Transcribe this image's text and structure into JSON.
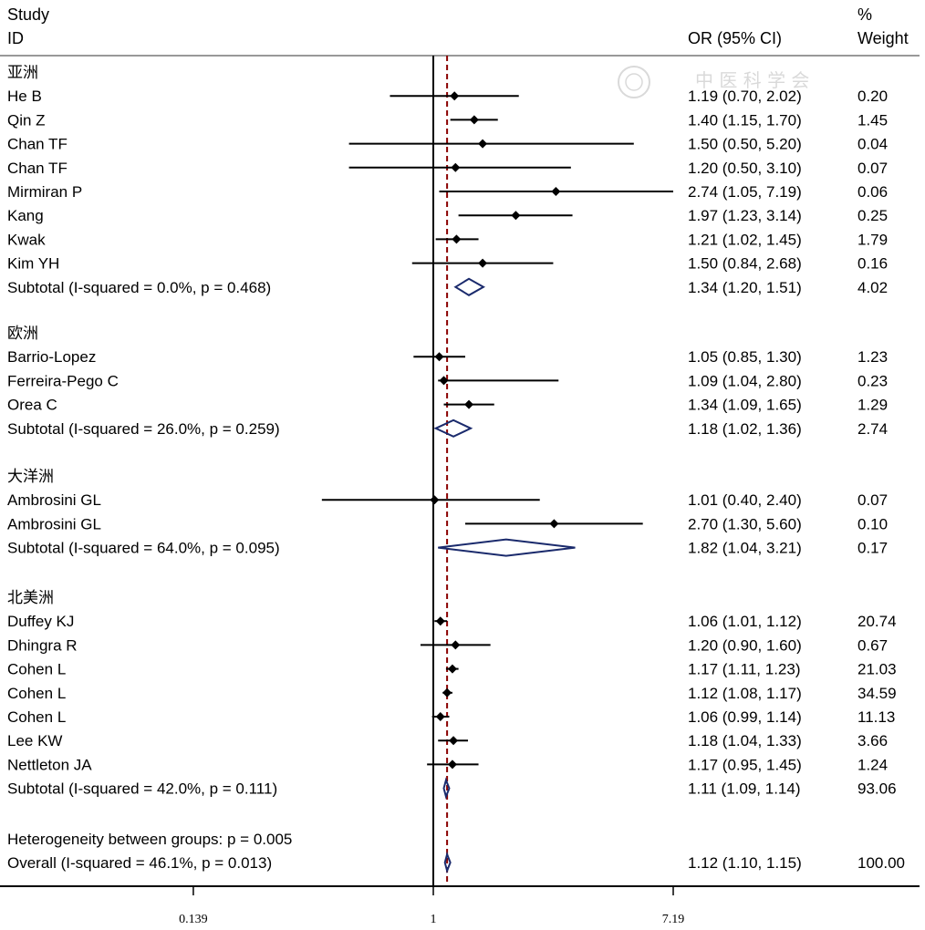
{
  "headers": {
    "study_line1": "Study",
    "study_line2": "ID",
    "or": "OR (95% CI)",
    "weight_line1": "%",
    "weight_line2": "Weight"
  },
  "watermark": "中 医 科 学 会",
  "colors": {
    "points": "#000000",
    "ci_lines": "#000000",
    "diamond": "#1a2a6c",
    "overall_line": "#8b0000",
    "null_line": "#000000"
  },
  "chart_data": {
    "type": "forest",
    "xscale": "log",
    "null_value": 1,
    "overall_or": 1.12,
    "xticks": [
      {
        "value": 0.139,
        "label": "0.139"
      },
      {
        "value": 1,
        "label": "1"
      },
      {
        "value": 7.19,
        "label": "7.19"
      }
    ],
    "groups": [
      {
        "name": "亚洲",
        "studies": [
          {
            "id": "He B",
            "or": 1.19,
            "lo": 0.7,
            "hi": 2.02,
            "ci": "1.19 (0.70, 2.02)",
            "weight": "0.20"
          },
          {
            "id": "Qin Z",
            "or": 1.4,
            "lo": 1.15,
            "hi": 1.7,
            "ci": "1.40 (1.15, 1.70)",
            "weight": "1.45"
          },
          {
            "id": "Chan TF",
            "or": 1.5,
            "lo": 0.5,
            "hi": 5.2,
            "ci": "1.50 (0.50, 5.20)",
            "weight": "0.04"
          },
          {
            "id": "Chan TF",
            "or": 1.2,
            "lo": 0.5,
            "hi": 3.1,
            "ci": "1.20 (0.50, 3.10)",
            "weight": "0.07"
          },
          {
            "id": "Mirmiran  P",
            "or": 2.74,
            "lo": 1.05,
            "hi": 7.19,
            "ci": "2.74 (1.05, 7.19)",
            "weight": "0.06"
          },
          {
            "id": "Kang",
            "or": 1.97,
            "lo": 1.23,
            "hi": 3.14,
            "ci": "1.97 (1.23, 3.14)",
            "weight": "0.25"
          },
          {
            "id": "Kwak",
            "or": 1.21,
            "lo": 1.02,
            "hi": 1.45,
            "ci": "1.21 (1.02, 1.45)",
            "weight": "1.79"
          },
          {
            "id": "Kim YH",
            "or": 1.5,
            "lo": 0.84,
            "hi": 2.68,
            "ci": "1.50 (0.84, 2.68)",
            "weight": "0.16"
          }
        ],
        "subtotal": {
          "label": "Subtotal  (I-squared = 0.0%, p = 0.468)",
          "or": 1.34,
          "lo": 1.2,
          "hi": 1.51,
          "ci": "1.34 (1.20, 1.51)",
          "weight": "4.02"
        }
      },
      {
        "name": "欧洲",
        "studies": [
          {
            "id": "Barrio-Lopez",
            "or": 1.05,
            "lo": 0.85,
            "hi": 1.3,
            "ci": "1.05 (0.85, 1.30)",
            "weight": "1.23"
          },
          {
            "id": "Ferreira-Pego C",
            "or": 1.09,
            "lo": 1.04,
            "hi": 2.8,
            "ci": "1.09 (1.04, 2.80)",
            "weight": "0.23"
          },
          {
            "id": "Orea C",
            "or": 1.34,
            "lo": 1.09,
            "hi": 1.65,
            "ci": "1.34 (1.09, 1.65)",
            "weight": "1.29"
          }
        ],
        "subtotal": {
          "label": "Subtotal  (I-squared = 26.0%, p = 0.259)",
          "or": 1.18,
          "lo": 1.02,
          "hi": 1.36,
          "ci": "1.18 (1.02, 1.36)",
          "weight": "2.74"
        }
      },
      {
        "name": "大洋洲",
        "studies": [
          {
            "id": "Ambrosini GL",
            "or": 1.01,
            "lo": 0.4,
            "hi": 2.4,
            "ci": "1.01 (0.40, 2.40)",
            "weight": "0.07"
          },
          {
            "id": "Ambrosini GL",
            "or": 2.7,
            "lo": 1.3,
            "hi": 5.6,
            "ci": "2.70 (1.30, 5.60)",
            "weight": "0.10"
          }
        ],
        "subtotal": {
          "label": "Subtotal  (I-squared = 64.0%, p = 0.095)",
          "or": 1.82,
          "lo": 1.04,
          "hi": 3.21,
          "ci": "1.82 (1.04, 3.21)",
          "weight": "0.17"
        }
      },
      {
        "name": "北美洲",
        "studies": [
          {
            "id": "Duffey KJ",
            "or": 1.06,
            "lo": 1.01,
            "hi": 1.12,
            "ci": "1.06 (1.01, 1.12)",
            "weight": "20.74"
          },
          {
            "id": "Dhingra R",
            "or": 1.2,
            "lo": 0.9,
            "hi": 1.6,
            "ci": "1.20 (0.90, 1.60)",
            "weight": "0.67"
          },
          {
            "id": "Cohen L",
            "or": 1.17,
            "lo": 1.11,
            "hi": 1.23,
            "ci": "1.17 (1.11, 1.23)",
            "weight": "21.03"
          },
          {
            "id": "Cohen L",
            "or": 1.12,
            "lo": 1.08,
            "hi": 1.17,
            "ci": "1.12 (1.08, 1.17)",
            "weight": "34.59"
          },
          {
            "id": "Cohen L",
            "or": 1.06,
            "lo": 0.99,
            "hi": 1.14,
            "ci": "1.06 (0.99, 1.14)",
            "weight": "11.13"
          },
          {
            "id": "Lee KW",
            "or": 1.18,
            "lo": 1.04,
            "hi": 1.33,
            "ci": "1.18 (1.04, 1.33)",
            "weight": "3.66"
          },
          {
            "id": "Nettleton JA",
            "or": 1.17,
            "lo": 0.95,
            "hi": 1.45,
            "ci": "1.17 (0.95, 1.45)",
            "weight": "1.24"
          }
        ],
        "subtotal": {
          "label": "Subtotal  (I-squared = 42.0%, p = 0.111)",
          "or": 1.11,
          "lo": 1.09,
          "hi": 1.14,
          "ci": "1.11 (1.09, 1.14)",
          "weight": "93.06"
        }
      }
    ],
    "heterogeneity": "Heterogeneity between groups: p = 0.005",
    "overall": {
      "label": "Overall  (I-squared = 46.1%, p = 0.013)",
      "or": 1.12,
      "lo": 1.1,
      "hi": 1.15,
      "ci": "1.12 (1.10, 1.15)",
      "weight": "100.00"
    }
  }
}
